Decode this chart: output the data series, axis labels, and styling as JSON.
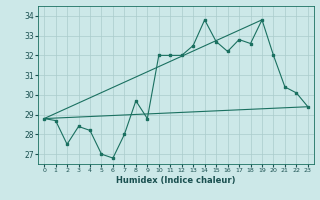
{
  "xlabel": "Humidex (Indice chaleur)",
  "background_color": "#cce8e8",
  "grid_color": "#aacccc",
  "line_color": "#1a7060",
  "xlim": [
    -0.5,
    23.5
  ],
  "ylim": [
    26.5,
    34.5
  ],
  "xticks": [
    0,
    1,
    2,
    3,
    4,
    5,
    6,
    7,
    8,
    9,
    10,
    11,
    12,
    13,
    14,
    15,
    16,
    17,
    18,
    19,
    20,
    21,
    22,
    23
  ],
  "yticks": [
    27,
    28,
    29,
    30,
    31,
    32,
    33,
    34
  ],
  "series1": {
    "x": [
      0,
      1,
      2,
      3,
      4,
      5,
      6,
      7,
      8,
      9,
      10,
      11,
      12,
      13,
      14,
      15,
      16,
      17,
      18,
      19,
      20,
      21,
      22,
      23
    ],
    "y": [
      28.8,
      28.7,
      27.5,
      28.4,
      28.2,
      27.0,
      26.8,
      28.0,
      29.7,
      28.8,
      32.0,
      32.0,
      32.0,
      32.5,
      33.8,
      32.7,
      32.2,
      32.8,
      32.6,
      33.8,
      32.0,
      30.4,
      30.1,
      29.4
    ]
  },
  "series2_flat": {
    "x": [
      0,
      23
    ],
    "y": [
      28.8,
      29.4
    ]
  },
  "series3_diag": {
    "x": [
      0,
      19
    ],
    "y": [
      28.8,
      33.8
    ]
  }
}
